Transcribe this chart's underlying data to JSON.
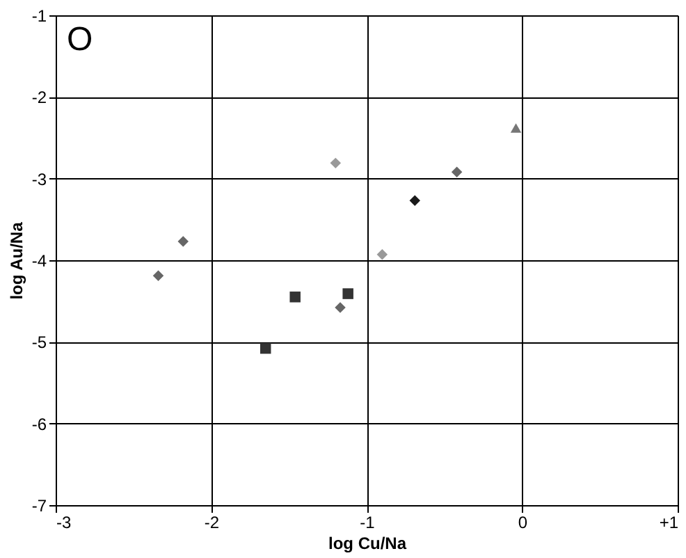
{
  "chart_data": {
    "type": "scatter",
    "xlabel": "log Cu/Na",
    "ylabel": "log Au/Na",
    "annotations": [
      "O"
    ],
    "xlim": [
      -3,
      1
    ],
    "xticks": [
      -3,
      -2,
      -1,
      0,
      {
        "value": 1,
        "label": "+1"
      }
    ],
    "ylim": [
      -7,
      -1
    ],
    "yticks": [
      -7,
      -6,
      -5,
      -4,
      -3,
      -2,
      -1
    ],
    "grid": true,
    "series": [
      {
        "color": "#666666",
        "marker": "diamond",
        "x": [
          -2.34,
          -2.18,
          -1.17,
          -0.42
        ],
        "values": [
          -4.19,
          -3.77,
          -4.58,
          -2.92
        ]
      },
      {
        "color": "#333333",
        "marker": "square",
        "x": [
          -1.65,
          -1.46,
          -1.12
        ],
        "values": [
          -5.08,
          -4.45,
          -4.41
        ]
      },
      {
        "color": "#999999",
        "marker": "diamond",
        "x": [
          -1.2,
          -0.9
        ],
        "values": [
          -2.81,
          -3.93
        ]
      },
      {
        "color": "#1a1a1a",
        "marker": "diamond",
        "x": [
          -0.69
        ],
        "values": [
          -3.27
        ]
      },
      {
        "color": "#777777",
        "marker": "triangle",
        "x": [
          -0.04
        ],
        "values": [
          -2.38
        ]
      }
    ]
  }
}
